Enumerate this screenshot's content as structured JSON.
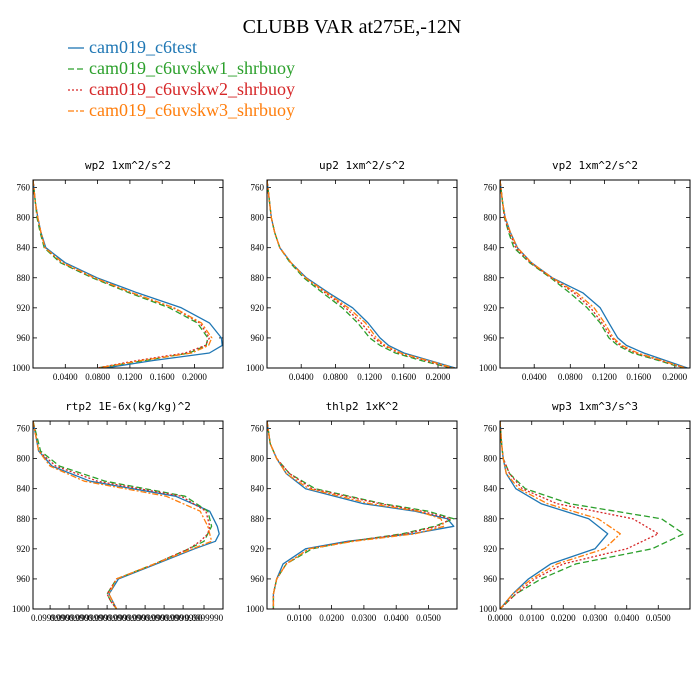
{
  "figure": {
    "title": "CLUBB VAR at275E,-12N"
  },
  "legend": [
    {
      "name": "cam019_c6test",
      "color": "#1f77b4",
      "dash": "solid"
    },
    {
      "name": "cam019_c6uvskw1_shrbuoy",
      "color": "#2ca02c",
      "dash": "dashed"
    },
    {
      "name": "cam019_c6uvskw2_shrbuoy",
      "color": "#d62728",
      "dash": "dotted"
    },
    {
      "name": "cam019_c6uvskw3_shrbuoy",
      "color": "#ff7f0e",
      "dash": "dashdot"
    }
  ],
  "chart_data": [
    {
      "type": "line",
      "title": "wp2  1xm^2/s^2",
      "ylim": [
        1000,
        750
      ],
      "xlim": [
        0.0,
        0.237
      ],
      "yticks": [
        "760",
        "800",
        "840",
        "880",
        "920",
        "960",
        "1000"
      ],
      "xticks": [
        "0.0400",
        "0.0800",
        "0.1200",
        "0.1600",
        "0.2000"
      ],
      "y": [
        750,
        780,
        800,
        820,
        840,
        860,
        880,
        900,
        920,
        940,
        960,
        970,
        980,
        990,
        1000
      ],
      "series": [
        {
          "name": "cam019_c6test",
          "values": [
            0.0,
            0.003,
            0.006,
            0.01,
            0.016,
            0.04,
            0.08,
            0.13,
            0.185,
            0.22,
            0.235,
            0.236,
            0.22,
            0.15,
            0.09
          ]
        },
        {
          "name": "cam019_c6uvskw1_shrbuoy",
          "values": [
            0.0,
            0.003,
            0.005,
            0.009,
            0.014,
            0.034,
            0.074,
            0.12,
            0.17,
            0.205,
            0.218,
            0.216,
            0.195,
            0.14,
            0.08
          ]
        },
        {
          "name": "cam019_c6uvskw2_shrbuoy",
          "values": [
            0.0,
            0.003,
            0.006,
            0.01,
            0.015,
            0.036,
            0.076,
            0.123,
            0.175,
            0.208,
            0.22,
            0.215,
            0.19,
            0.13,
            0.08
          ]
        },
        {
          "name": "cam019_c6uvskw3_shrbuoy",
          "values": [
            0.0,
            0.003,
            0.006,
            0.01,
            0.015,
            0.037,
            0.077,
            0.124,
            0.176,
            0.21,
            0.223,
            0.219,
            0.198,
            0.135,
            0.082
          ]
        }
      ]
    },
    {
      "type": "line",
      "title": "up2  1xm^2/s^2",
      "ylim": [
        1000,
        750
      ],
      "xlim": [
        0.0,
        0.222
      ],
      "yticks": [
        "760",
        "800",
        "840",
        "880",
        "920",
        "960",
        "1000"
      ],
      "xticks": [
        "0.0400",
        "0.0800",
        "0.1200",
        "0.1600",
        "0.2000"
      ],
      "y": [
        750,
        780,
        800,
        820,
        840,
        860,
        880,
        900,
        920,
        940,
        960,
        970,
        980,
        990,
        1000
      ],
      "series": [
        {
          "name": "cam019_c6test",
          "values": [
            0.0,
            0.003,
            0.005,
            0.009,
            0.015,
            0.028,
            0.046,
            0.072,
            0.1,
            0.118,
            0.132,
            0.142,
            0.16,
            0.19,
            0.22
          ]
        },
        {
          "name": "cam019_c6uvskw1_shrbuoy",
          "values": [
            0.0,
            0.003,
            0.005,
            0.009,
            0.015,
            0.027,
            0.043,
            0.065,
            0.088,
            0.106,
            0.12,
            0.132,
            0.15,
            0.18,
            0.215
          ]
        },
        {
          "name": "cam019_c6uvskw2_shrbuoy",
          "values": [
            0.0,
            0.003,
            0.005,
            0.009,
            0.015,
            0.028,
            0.045,
            0.068,
            0.092,
            0.11,
            0.125,
            0.136,
            0.154,
            0.185,
            0.215
          ]
        },
        {
          "name": "cam019_c6uvskw3_shrbuoy",
          "values": [
            0.0,
            0.003,
            0.005,
            0.009,
            0.015,
            0.028,
            0.045,
            0.07,
            0.095,
            0.115,
            0.128,
            0.138,
            0.156,
            0.188,
            0.218
          ]
        }
      ]
    },
    {
      "type": "line",
      "title": "vp2  1xm^2/s^2",
      "ylim": [
        1000,
        750
      ],
      "xlim": [
        0.0,
        0.218
      ],
      "yticks": [
        "760",
        "800",
        "840",
        "880",
        "920",
        "960",
        "1000"
      ],
      "xticks": [
        "0.0400",
        "0.0800",
        "0.1200",
        "0.1600",
        "0.2000"
      ],
      "y": [
        750,
        780,
        800,
        820,
        840,
        860,
        880,
        900,
        920,
        940,
        960,
        970,
        980,
        990,
        1000
      ],
      "series": [
        {
          "name": "cam019_c6test",
          "values": [
            0.0,
            0.003,
            0.006,
            0.012,
            0.02,
            0.036,
            0.06,
            0.095,
            0.115,
            0.125,
            0.135,
            0.145,
            0.165,
            0.19,
            0.215
          ]
        },
        {
          "name": "cam019_c6uvskw1_shrbuoy",
          "values": [
            0.0,
            0.003,
            0.005,
            0.01,
            0.016,
            0.034,
            0.058,
            0.08,
            0.1,
            0.115,
            0.125,
            0.135,
            0.152,
            0.182,
            0.21
          ]
        },
        {
          "name": "cam019_c6uvskw2_shrbuoy",
          "values": [
            0.0,
            0.003,
            0.005,
            0.011,
            0.018,
            0.035,
            0.059,
            0.085,
            0.104,
            0.117,
            0.128,
            0.138,
            0.156,
            0.184,
            0.212
          ]
        },
        {
          "name": "cam019_c6uvskw3_shrbuoy",
          "values": [
            0.0,
            0.003,
            0.006,
            0.012,
            0.02,
            0.036,
            0.06,
            0.088,
            0.108,
            0.12,
            0.13,
            0.14,
            0.158,
            0.186,
            0.213
          ]
        }
      ]
    },
    {
      "type": "line",
      "title": "rtp2  1E-6x(kg/kg)^2",
      "ylim": [
        1000,
        750
      ],
      "xlim": [
        0.0,
        1.0
      ],
      "yticks": [
        "760",
        "800",
        "840",
        "880",
        "920",
        "960",
        "1000"
      ],
      "xticks": [
        "0.0999990",
        "0.0999990",
        "0.0999990",
        "0.0999990",
        "0.0999990",
        "0.0999990",
        "0.0999990",
        "0.0999990",
        "0.0999990"
      ],
      "y": [
        750,
        790,
        810,
        830,
        850,
        870,
        890,
        900,
        910,
        920,
        940,
        960,
        980,
        990,
        1000
      ],
      "series": [
        {
          "name": "cam019_c6test",
          "values": [
            0.0,
            0.03,
            0.1,
            0.3,
            0.75,
            0.93,
            0.97,
            0.98,
            0.96,
            0.85,
            0.65,
            0.45,
            0.4,
            0.42,
            0.44
          ]
        },
        {
          "name": "cam019_c6uvskw1_shrbuoy",
          "values": [
            0.0,
            0.04,
            0.14,
            0.38,
            0.8,
            0.92,
            0.94,
            0.92,
            0.9,
            0.82,
            0.64,
            0.44,
            0.39,
            0.41,
            0.44
          ]
        },
        {
          "name": "cam019_c6uvskw2_shrbuoy",
          "values": [
            0.0,
            0.03,
            0.12,
            0.34,
            0.78,
            0.91,
            0.93,
            0.92,
            0.88,
            0.82,
            0.64,
            0.44,
            0.39,
            0.41,
            0.44
          ]
        },
        {
          "name": "cam019_c6uvskw3_shrbuoy",
          "values": [
            0.0,
            0.03,
            0.09,
            0.27,
            0.7,
            0.88,
            0.92,
            0.93,
            0.94,
            0.84,
            0.64,
            0.44,
            0.4,
            0.42,
            0.44
          ]
        }
      ]
    },
    {
      "type": "line",
      "title": "thlp2  1xK^2",
      "ylim": [
        1000,
        750
      ],
      "xlim": [
        0.0,
        0.059
      ],
      "yticks": [
        "760",
        "800",
        "840",
        "880",
        "920",
        "960",
        "1000"
      ],
      "xticks": [
        "0.0100",
        "0.0200",
        "0.0300",
        "0.0400",
        "0.0500"
      ],
      "y": [
        750,
        780,
        800,
        820,
        840,
        860,
        870,
        880,
        890,
        900,
        910,
        920,
        940,
        960,
        980,
        1000
      ],
      "series": [
        {
          "name": "cam019_c6test",
          "values": [
            0.0,
            0.001,
            0.003,
            0.006,
            0.012,
            0.03,
            0.046,
            0.056,
            0.058,
            0.045,
            0.025,
            0.012,
            0.005,
            0.003,
            0.002,
            0.002
          ]
        },
        {
          "name": "cam019_c6uvskw1_shrbuoy",
          "values": [
            0.0,
            0.001,
            0.003,
            0.007,
            0.015,
            0.036,
            0.05,
            0.058,
            0.052,
            0.042,
            0.026,
            0.014,
            0.006,
            0.003,
            0.002,
            0.002
          ]
        },
        {
          "name": "cam019_c6uvskw2_shrbuoy",
          "values": [
            0.0,
            0.001,
            0.003,
            0.007,
            0.014,
            0.035,
            0.048,
            0.057,
            0.053,
            0.043,
            0.026,
            0.013,
            0.006,
            0.003,
            0.002,
            0.002
          ]
        },
        {
          "name": "cam019_c6uvskw3_shrbuoy",
          "values": [
            0.0,
            0.001,
            0.003,
            0.006,
            0.013,
            0.032,
            0.047,
            0.054,
            0.055,
            0.046,
            0.027,
            0.013,
            0.006,
            0.003,
            0.002,
            0.002
          ]
        }
      ]
    },
    {
      "type": "line",
      "title": "wp3  1xm^3/s^3",
      "ylim": [
        1000,
        750
      ],
      "xlim": [
        0.0,
        0.06
      ],
      "yticks": [
        "760",
        "800",
        "840",
        "880",
        "920",
        "960",
        "1000"
      ],
      "xticks": [
        "0.0000",
        "0.0100",
        "0.0200",
        "0.0300",
        "0.0400",
        "0.0500"
      ],
      "y": [
        750,
        780,
        800,
        820,
        840,
        860,
        880,
        900,
        920,
        940,
        960,
        980,
        1000
      ],
      "series": [
        {
          "name": "cam019_c6test",
          "values": [
            0.0,
            0.0005,
            0.001,
            0.002,
            0.005,
            0.013,
            0.028,
            0.034,
            0.03,
            0.016,
            0.009,
            0.004,
            0.0
          ]
        },
        {
          "name": "cam019_c6uvskw1_shrbuoy",
          "values": [
            0.0,
            0.0005,
            0.001,
            0.003,
            0.008,
            0.022,
            0.051,
            0.058,
            0.048,
            0.024,
            0.013,
            0.005,
            0.0
          ]
        },
        {
          "name": "cam019_c6uvskw2_shrbuoy",
          "values": [
            0.0,
            0.0005,
            0.001,
            0.003,
            0.007,
            0.018,
            0.042,
            0.05,
            0.04,
            0.02,
            0.011,
            0.005,
            0.0
          ]
        },
        {
          "name": "cam019_c6uvskw3_shrbuoy",
          "values": [
            0.0,
            0.0005,
            0.001,
            0.002,
            0.006,
            0.015,
            0.031,
            0.038,
            0.033,
            0.018,
            0.01,
            0.004,
            0.0
          ]
        }
      ]
    }
  ]
}
